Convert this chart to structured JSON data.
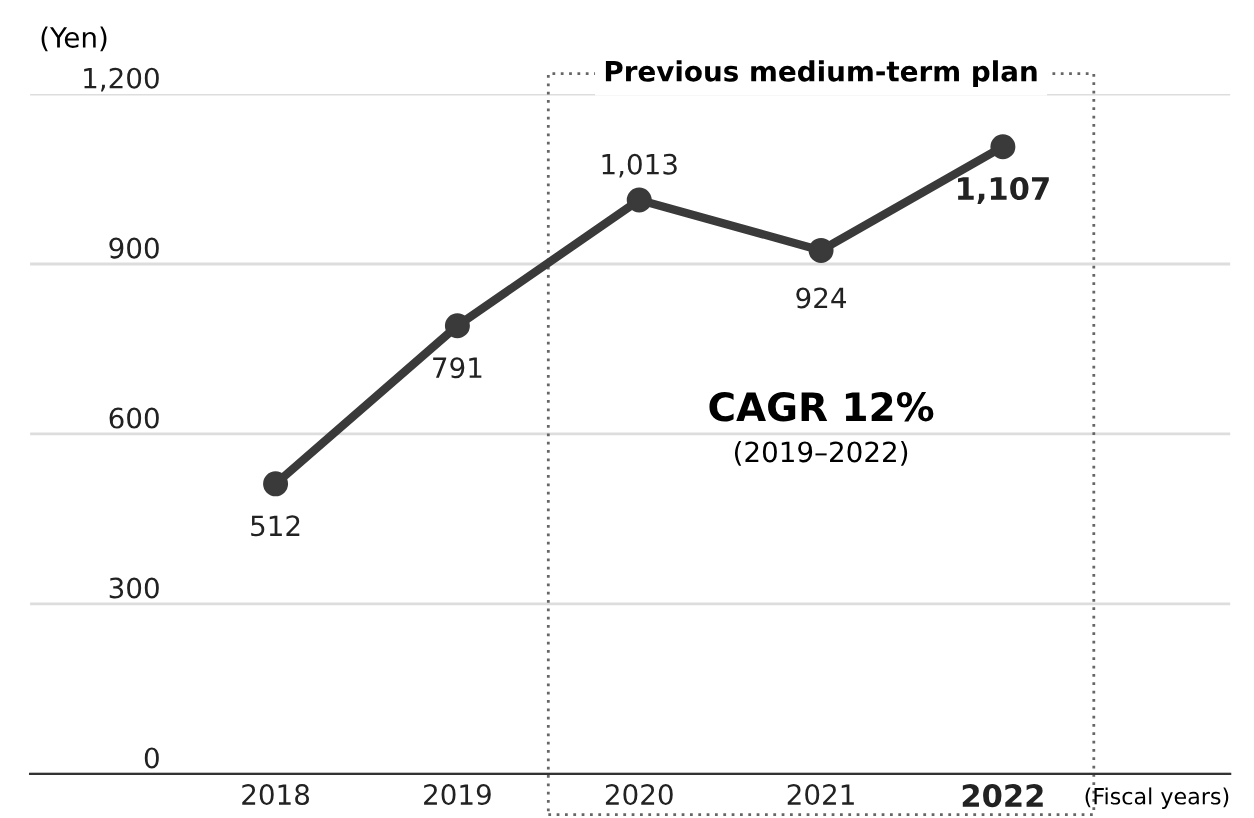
{
  "chart_data": {
    "type": "line",
    "categories": [
      "2018",
      "2019",
      "2020",
      "2021",
      "2022"
    ],
    "series": [
      {
        "color": "#3a3a3a",
        "values": [
          512,
          791,
          1013,
          924,
          1107
        ]
      }
    ],
    "ylabel": "(Yen)",
    "xlabel": "(Fiscal years)",
    "ylim": [
      0,
      1200
    ],
    "yticks": [
      0,
      300,
      600,
      900,
      {
        "value": 1200,
        "label": "1,200"
      }
    ],
    "grid": "y",
    "marker": "circle",
    "line_style": "solid",
    "value_labels": [
      "512",
      "791",
      "1,013",
      "924",
      "1,107"
    ],
    "annotations": [
      "Previous medium-term plan",
      "CAGR 12%",
      "(2019–2022)"
    ]
  }
}
